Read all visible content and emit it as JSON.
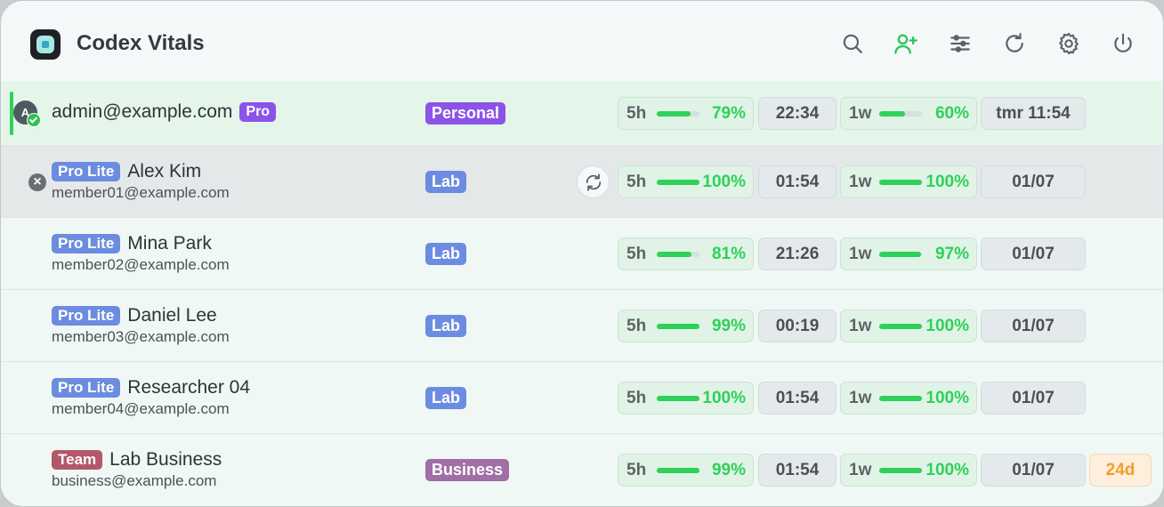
{
  "app": {
    "title": "Codex Vitals"
  },
  "colors": {
    "accent": "#2fd158",
    "pro": "#8b54e8",
    "pro_lite": "#6b8ce0",
    "team": "#b35868",
    "business": "#a06fa5",
    "warning": "#f39d2a"
  },
  "header_icons": [
    "search-icon",
    "add-user-icon",
    "filter-sliders-icon",
    "refresh-icon",
    "gear-icon",
    "power-icon"
  ],
  "rows": [
    {
      "avatar_letter": "A",
      "name": "admin@example.com",
      "plan_badge": "Pro",
      "group": "Personal",
      "five_hour": {
        "label": "5h",
        "pct": "79%",
        "value": 79
      },
      "five_hour_reset": "22:34",
      "week": {
        "label": "1w",
        "pct": "60%",
        "value": 60
      },
      "week_reset": "tmr 11:54"
    },
    {
      "remove_symbol": "×",
      "plan_badge": "Pro Lite",
      "name": "Alex Kim",
      "email": "member01@example.com",
      "group": "Lab",
      "five_hour": {
        "label": "5h",
        "pct": "100%",
        "value": 100
      },
      "five_hour_reset": "01:54",
      "week": {
        "label": "1w",
        "pct": "100%",
        "value": 100
      },
      "week_reset": "01/07"
    },
    {
      "plan_badge": "Pro Lite",
      "name": "Mina Park",
      "email": "member02@example.com",
      "group": "Lab",
      "five_hour": {
        "label": "5h",
        "pct": "81%",
        "value": 81
      },
      "five_hour_reset": "21:26",
      "week": {
        "label": "1w",
        "pct": "97%",
        "value": 97
      },
      "week_reset": "01/07"
    },
    {
      "plan_badge": "Pro Lite",
      "name": "Daniel Lee",
      "email": "member03@example.com",
      "group": "Lab",
      "five_hour": {
        "label": "5h",
        "pct": "99%",
        "value": 99
      },
      "five_hour_reset": "00:19",
      "week": {
        "label": "1w",
        "pct": "100%",
        "value": 100
      },
      "week_reset": "01/07"
    },
    {
      "plan_badge": "Pro Lite",
      "name": "Researcher 04",
      "email": "member04@example.com",
      "group": "Lab",
      "five_hour": {
        "label": "5h",
        "pct": "100%",
        "value": 100
      },
      "five_hour_reset": "01:54",
      "week": {
        "label": "1w",
        "pct": "100%",
        "value": 100
      },
      "week_reset": "01/07"
    },
    {
      "plan_badge": "Team",
      "name": "Lab Business",
      "email": "business@example.com",
      "group": "Business",
      "five_hour": {
        "label": "5h",
        "pct": "99%",
        "value": 99
      },
      "five_hour_reset": "01:54",
      "week": {
        "label": "1w",
        "pct": "100%",
        "value": 100
      },
      "week_reset": "01/07",
      "days_left": "24d"
    }
  ]
}
